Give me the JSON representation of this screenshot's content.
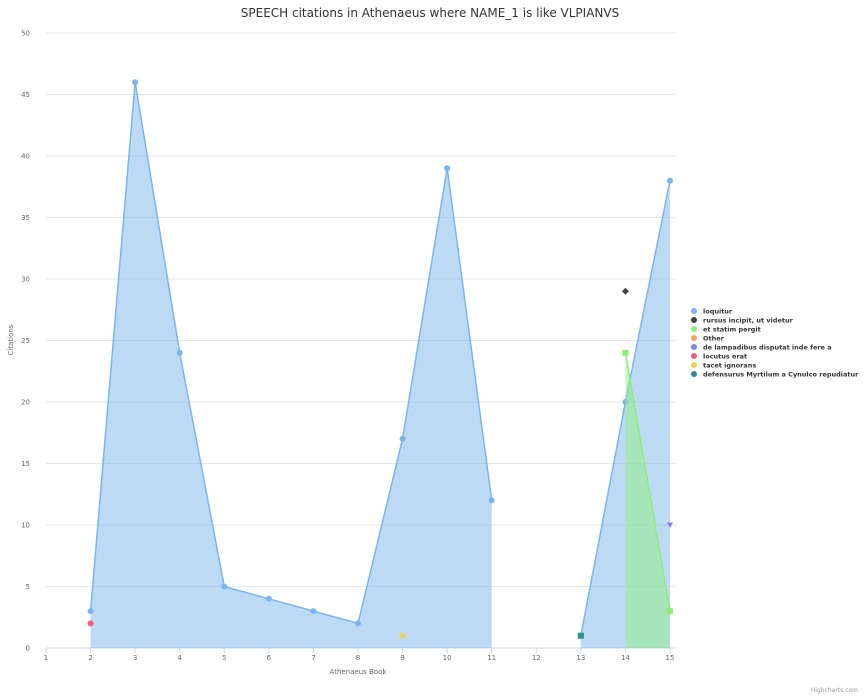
{
  "chart_data": {
    "type": "area",
    "title": "SPEECH citations in Athenaeus where NAME_1 is like VLPIANVS",
    "xlabel": "Athenaeus Book",
    "ylabel": "Citations",
    "xlim": [
      1,
      15
    ],
    "ylim": [
      0,
      50
    ],
    "x_ticks": [
      "1",
      "2",
      "3",
      "4",
      "5",
      "6",
      "7",
      "8",
      "9",
      "10",
      "11",
      "12",
      "13",
      "14",
      "15"
    ],
    "y_ticks": [
      "0",
      "5",
      "10",
      "15",
      "20",
      "25",
      "30",
      "35",
      "40",
      "45",
      "50"
    ],
    "grid": true,
    "legend_position": "right",
    "series": [
      {
        "name": "loquitur",
        "type": "area",
        "color": "#7cb5ec",
        "marker": "circle",
        "points": [
          [
            2,
            3
          ],
          [
            3,
            46
          ],
          [
            4,
            24
          ],
          [
            5,
            5
          ],
          [
            6,
            4
          ],
          [
            7,
            3
          ],
          [
            8,
            2
          ],
          [
            9,
            17
          ],
          [
            10,
            39
          ],
          [
            11,
            12
          ],
          [
            13,
            1
          ],
          [
            14,
            20
          ],
          [
            15,
            38
          ]
        ]
      },
      {
        "name": "rursus incipit, ut videtur",
        "type": "scatter",
        "color": "#434348",
        "marker": "diamond",
        "points": [
          [
            14,
            29
          ]
        ]
      },
      {
        "name": "et statim pergit",
        "type": "area",
        "color": "#90ed7d",
        "marker": "square",
        "points": [
          [
            14,
            24
          ],
          [
            15,
            3
          ]
        ]
      },
      {
        "name": "Other",
        "type": "scatter",
        "color": "#f7a35c",
        "marker": "circle",
        "points": []
      },
      {
        "name": "de lampadibus disputat inde fere a",
        "type": "scatter",
        "color": "#8085e9",
        "marker": "triangle-down",
        "points": [
          [
            15,
            10
          ]
        ]
      },
      {
        "name": "locutus erat",
        "type": "scatter",
        "color": "#f15c80",
        "marker": "circle",
        "points": [
          [
            2,
            2
          ]
        ]
      },
      {
        "name": "tacet ignorans",
        "type": "scatter",
        "color": "#e4d354",
        "marker": "circle",
        "points": [
          [
            9,
            1
          ]
        ]
      },
      {
        "name": "defensurus Myrtilum a Cynulco repudiatur",
        "type": "scatter",
        "color": "#2b908f",
        "marker": "square",
        "points": [
          [
            13,
            1
          ]
        ]
      }
    ]
  },
  "credits": "Highcharts.com"
}
